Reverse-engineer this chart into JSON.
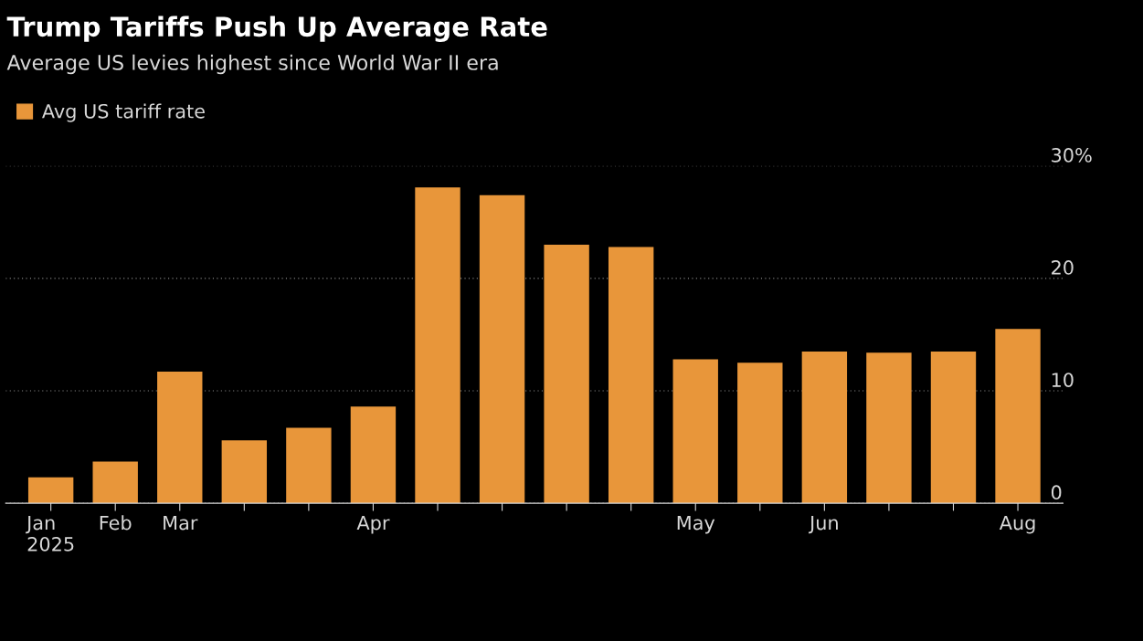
{
  "chart_data": {
    "type": "bar",
    "title": "Trump Tariffs Push Up Average Rate",
    "subtitle": "Average US levies highest since World War II era",
    "categories": [
      "Jan\n2025",
      "Feb",
      "Mar",
      null,
      null,
      "Apr",
      null,
      null,
      null,
      null,
      "May",
      null,
      "Jun",
      null,
      null,
      "Aug"
    ],
    "series": [
      {
        "name": "Avg US tariff rate",
        "color": "#e8963a",
        "values": [
          2.3,
          3.7,
          11.7,
          5.6,
          6.7,
          8.6,
          28.1,
          27.4,
          23.0,
          22.8,
          12.8,
          12.5,
          13.5,
          13.4,
          13.5,
          15.5
        ]
      }
    ],
    "ylim": [
      0,
      30
    ],
    "yticks": [
      0,
      10,
      20,
      {
        "value": 30,
        "label": "30%"
      }
    ],
    "grid": "y",
    "legend": "top left"
  }
}
